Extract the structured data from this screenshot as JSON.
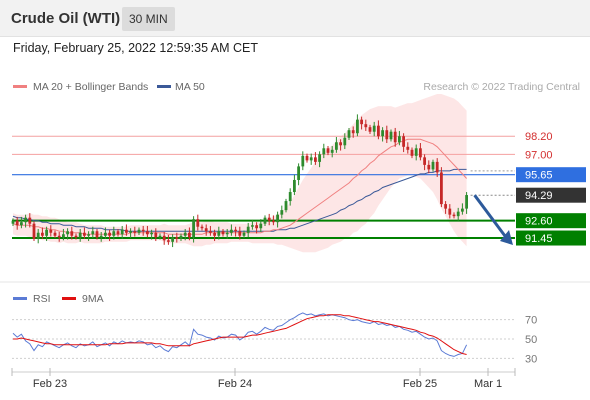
{
  "header": {
    "title": "Crude Oil (WTI)",
    "timeframe": "30 MIN"
  },
  "date_line": "Friday, February 25, 2022 12:59:35 AM CET",
  "colors": {
    "bollinger": "#f4a6a6",
    "ma20": "#f08080",
    "ma50": "#3b5998",
    "up": "#2e8b2e",
    "down": "#c62828",
    "support": "#008000",
    "pivot": "#2f6fe0",
    "current": "#333333",
    "rsi": "#5b7bd5",
    "rsi_ma": "#e01010"
  },
  "chart_data": [
    {
      "type": "line",
      "title": "",
      "legend": [
        {
          "name": "MA 20 + Bollinger Bands",
          "color": "#f08080"
        },
        {
          "name": "MA 50",
          "color": "#3b5998"
        }
      ],
      "legend_position": "top-left",
      "watermark": "Research © 2022 Trading Central",
      "ylim": [
        88.6,
        101.2
      ],
      "x_ticks": [
        "Feb 23",
        "Feb 24",
        "Feb 25",
        "Mar 1"
      ],
      "levels": [
        {
          "value": 98.2,
          "label": "98.20",
          "kind": "resistance"
        },
        {
          "value": 97.0,
          "label": "97.00",
          "kind": "resistance"
        },
        {
          "value": 95.65,
          "label": "95.65",
          "kind": "pivot"
        },
        {
          "value": 94.29,
          "label": "94.29",
          "kind": "current"
        },
        {
          "value": 92.6,
          "label": "92.60",
          "kind": "support"
        },
        {
          "value": 91.45,
          "label": "91.45",
          "kind": "support"
        }
      ],
      "close": [
        92.6,
        92.3,
        92.5,
        92.8,
        92.4,
        91.4,
        91.8,
        91.6,
        92.0,
        91.8,
        91.6,
        91.5,
        91.7,
        91.9,
        91.6,
        91.5,
        91.8,
        91.6,
        91.7,
        91.9,
        91.5,
        91.6,
        91.8,
        91.6,
        91.9,
        91.7,
        92.0,
        91.8,
        91.9,
        91.8,
        92.0,
        91.9,
        91.7,
        91.8,
        91.5,
        91.6,
        91.3,
        91.2,
        91.5,
        91.4,
        91.6,
        91.8,
        91.5,
        92.7,
        92.2,
        92.1,
        91.9,
        91.8,
        91.6,
        91.9,
        91.7,
        91.8,
        92.0,
        91.9,
        91.6,
        91.8,
        92.2,
        92.3,
        92.1,
        92.4,
        92.8,
        92.6,
        92.5,
        93.0,
        93.3,
        93.9,
        94.5,
        95.3,
        96.2,
        96.9,
        96.6,
        96.8,
        96.5,
        97.0,
        97.4,
        97.1,
        97.3,
        97.8,
        97.6,
        98.1,
        98.6,
        98.4,
        99.3,
        99.0,
        98.8,
        98.5,
        98.9,
        98.2,
        98.6,
        98.0,
        98.5,
        97.8,
        98.2,
        97.5,
        97.3,
        96.9,
        97.4,
        96.8,
        96.3,
        96.0,
        96.5,
        95.8,
        93.7,
        93.4,
        93.0,
        92.9,
        93.2,
        93.4,
        94.3
      ],
      "ma20": [
        92.4,
        92.3,
        92.3,
        92.3,
        92.3,
        92.2,
        92.2,
        92.1,
        92.1,
        92.0,
        92.0,
        91.9,
        91.9,
        91.8,
        91.8,
        91.8,
        91.8,
        91.7,
        91.7,
        91.7,
        91.7,
        91.7,
        91.7,
        91.7,
        91.7,
        91.7,
        91.7,
        91.7,
        91.8,
        91.8,
        91.8,
        91.8,
        91.8,
        91.8,
        91.8,
        91.8,
        91.8,
        91.7,
        91.7,
        91.7,
        91.7,
        91.7,
        91.7,
        91.7,
        91.7,
        91.7,
        91.8,
        91.8,
        91.8,
        91.8,
        91.8,
        91.8,
        91.8,
        91.8,
        91.8,
        91.8,
        91.8,
        91.8,
        91.8,
        91.8,
        91.9,
        91.9,
        92.0,
        92.0,
        92.1,
        92.2,
        92.3,
        92.5,
        92.7,
        92.9,
        93.1,
        93.3,
        93.5,
        93.7,
        93.9,
        94.1,
        94.3,
        94.5,
        94.7,
        94.9,
        95.1,
        95.4,
        95.6,
        95.9,
        96.1,
        96.4,
        96.6,
        96.9,
        97.1,
        97.3,
        97.5,
        97.6,
        97.8,
        97.9,
        98.0,
        98.0,
        98.0,
        98.0,
        97.9,
        97.8,
        97.7,
        97.5,
        97.2,
        96.9,
        96.6,
        96.3,
        96.0,
        95.7,
        95.4
      ],
      "ma50": [
        92.9,
        92.8,
        92.8,
        92.7,
        92.7,
        92.6,
        92.6,
        92.5,
        92.5,
        92.4,
        92.4,
        92.4,
        92.3,
        92.3,
        92.3,
        92.2,
        92.2,
        92.2,
        92.1,
        92.1,
        92.1,
        92.1,
        92.0,
        92.0,
        92.0,
        92.0,
        92.0,
        91.9,
        91.9,
        91.9,
        91.9,
        91.9,
        91.9,
        91.9,
        91.9,
        91.9,
        91.9,
        91.9,
        91.9,
        91.9,
        91.9,
        91.9,
        91.9,
        91.9,
        91.9,
        91.9,
        91.9,
        91.9,
        91.9,
        91.9,
        91.9,
        91.9,
        91.9,
        91.9,
        91.9,
        91.9,
        91.9,
        91.9,
        91.9,
        91.9,
        91.9,
        91.9,
        91.9,
        92.0,
        92.0,
        92.0,
        92.1,
        92.1,
        92.2,
        92.3,
        92.4,
        92.5,
        92.6,
        92.7,
        92.8,
        92.9,
        93.0,
        93.1,
        93.3,
        93.4,
        93.6,
        93.7,
        93.9,
        94.0,
        94.2,
        94.3,
        94.5,
        94.6,
        94.8,
        94.9,
        95.0,
        95.1,
        95.2,
        95.3,
        95.4,
        95.5,
        95.6,
        95.7,
        95.7,
        95.8,
        95.8,
        95.9,
        95.9,
        95.9,
        95.9,
        96.0,
        96.0,
        96.0,
        96.0
      ],
      "bb_width": [
        0.7,
        0.7,
        0.7,
        0.7,
        0.8,
        0.8,
        0.8,
        0.8,
        0.8,
        0.8,
        0.8,
        0.8,
        0.7,
        0.7,
        0.7,
        0.7,
        0.6,
        0.6,
        0.6,
        0.6,
        0.6,
        0.6,
        0.5,
        0.5,
        0.5,
        0.5,
        0.5,
        0.5,
        0.5,
        0.5,
        0.5,
        0.5,
        0.5,
        0.5,
        0.5,
        0.5,
        0.6,
        0.6,
        0.6,
        0.6,
        0.6,
        0.6,
        0.7,
        0.8,
        0.8,
        0.8,
        0.8,
        0.8,
        0.7,
        0.7,
        0.7,
        0.7,
        0.6,
        0.6,
        0.6,
        0.6,
        0.6,
        0.7,
        0.7,
        0.7,
        0.8,
        0.8,
        0.9,
        1.0,
        1.1,
        1.3,
        1.5,
        1.8,
        2.1,
        2.4,
        2.6,
        2.8,
        3.0,
        3.1,
        3.2,
        3.3,
        3.3,
        3.4,
        3.5,
        3.5,
        3.6,
        3.6,
        3.7,
        3.7,
        3.7,
        3.6,
        3.5,
        3.3,
        3.1,
        2.9,
        2.7,
        2.5,
        2.4,
        2.4,
        2.4,
        2.4,
        2.5,
        2.6,
        2.8,
        3.0,
        3.2,
        3.5,
        3.8,
        4.0,
        4.2,
        4.4,
        4.5,
        4.5,
        4.5
      ],
      "projection_arrow": {
        "from": 94.29,
        "to": 91.45
      }
    },
    {
      "type": "line",
      "title": "",
      "legend": [
        {
          "name": "RSI",
          "color": "#5b7bd5"
        },
        {
          "name": "9MA",
          "color": "#e01010"
        }
      ],
      "ylim": [
        20,
        80
      ],
      "y_ticks": [
        {
          "value": 70,
          "label": "70"
        },
        {
          "value": 50,
          "label": "50"
        },
        {
          "value": 30,
          "label": "30"
        }
      ],
      "rsi": [
        56,
        52,
        55,
        48,
        45,
        38,
        44,
        42,
        47,
        45,
        43,
        41,
        44,
        46,
        43,
        41,
        45,
        43,
        44,
        47,
        42,
        44,
        46,
        43,
        47,
        45,
        48,
        46,
        47,
        46,
        48,
        47,
        44,
        45,
        41,
        43,
        39,
        37,
        42,
        41,
        44,
        47,
        43,
        60,
        55,
        54,
        52,
        51,
        49,
        53,
        51,
        52,
        55,
        54,
        49,
        52,
        57,
        58,
        55,
        58,
        62,
        60,
        59,
        63,
        64,
        67,
        70,
        72,
        75,
        77,
        75,
        76,
        74,
        75,
        76,
        74,
        75,
        74,
        73,
        72,
        70,
        69,
        70,
        68,
        67,
        66,
        68,
        65,
        66,
        64,
        65,
        62,
        63,
        60,
        59,
        57,
        58,
        55,
        52,
        50,
        51,
        48,
        38,
        35,
        33,
        32,
        34,
        35,
        44
      ],
      "rsi_ma": [
        50,
        50,
        51,
        50,
        49,
        48,
        47,
        46,
        45,
        45,
        44,
        44,
        44,
        44,
        44,
        44,
        44,
        44,
        44,
        44,
        44,
        44,
        44,
        45,
        45,
        45,
        45,
        46,
        46,
        46,
        46,
        46,
        46,
        46,
        45,
        45,
        44,
        43,
        43,
        43,
        43,
        43,
        43,
        45,
        46,
        47,
        48,
        49,
        50,
        51,
        52,
        52,
        52,
        52,
        52,
        52,
        53,
        54,
        54,
        55,
        56,
        57,
        58,
        59,
        60,
        61,
        63,
        65,
        67,
        69,
        71,
        72,
        73,
        74,
        74,
        75,
        75,
        75,
        75,
        74,
        74,
        73,
        72,
        71,
        70,
        69,
        68,
        68,
        67,
        66,
        65,
        64,
        63,
        62,
        61,
        60,
        59,
        57,
        56,
        54,
        53,
        51,
        48,
        45,
        42,
        39,
        37,
        35,
        34
      ]
    }
  ]
}
